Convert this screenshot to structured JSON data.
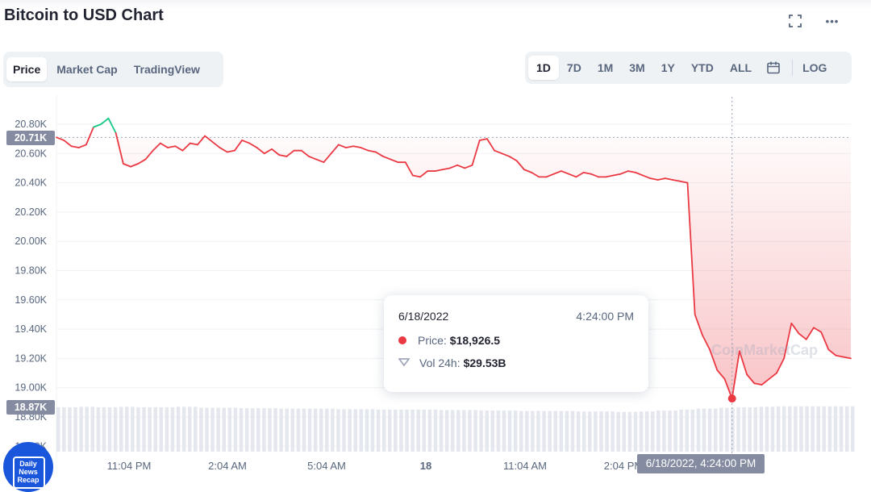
{
  "header": {
    "title": "Bitcoin to USD Chart",
    "fullscreen_icon": "fullscreen-icon",
    "more_icon": "more-icon",
    "more_label": "•••"
  },
  "view_tabs": [
    {
      "label": "Price",
      "active": true
    },
    {
      "label": "Market Cap",
      "active": false
    },
    {
      "label": "TradingView",
      "active": false
    }
  ],
  "range_tabs": [
    {
      "label": "1D",
      "active": true
    },
    {
      "label": "7D",
      "active": false
    },
    {
      "label": "1M",
      "active": false
    },
    {
      "label": "3M",
      "active": false
    },
    {
      "label": "1Y",
      "active": false
    },
    {
      "label": "YTD",
      "active": false
    },
    {
      "label": "ALL",
      "active": false
    }
  ],
  "calendar_icon": "calendar-icon",
  "log_label": "LOG",
  "y_axis": {
    "ticks": [
      "20.80K",
      "20.60K",
      "20.40K",
      "20.20K",
      "20.00K",
      "19.80K",
      "19.60K",
      "19.40K",
      "19.20K",
      "19.00K",
      "18.80K",
      "18.60K"
    ],
    "open_price_label": "20.71K",
    "low_price_label": "18.87K"
  },
  "x_axis": {
    "ticks": [
      "11:04 PM",
      "2:04 AM",
      "5:04 AM",
      "18",
      "11:04 AM",
      "2:04 PM"
    ],
    "hover_label": "6/18/2022, 4:24:00 PM"
  },
  "tooltip": {
    "date": "6/18/2022",
    "time": "4:24:00 PM",
    "price_label": "Price:",
    "price_value": "$18,926.5",
    "vol_label": "Vol 24h:",
    "vol_value": "$29.53B"
  },
  "watermark": "CoinMarketCap",
  "badge": {
    "line1": "Daily",
    "line2": "News",
    "line3": "Recap"
  },
  "colors": {
    "up": "#16c784",
    "down": "#ea3943",
    "axis_text": "#58667e",
    "pill": "#858ca2"
  },
  "chart_data": {
    "type": "line",
    "title": "Bitcoin to USD Chart",
    "ylim": [
      18600,
      20900
    ],
    "open_price": 20710,
    "hover": {
      "time": "6/18/2022, 4:24:00 PM",
      "price": 18926.5
    },
    "x_ticks": [
      "11:04 PM",
      "2:04 AM",
      "5:04 AM",
      "18",
      "11:04 AM",
      "2:04 PM"
    ],
    "price": [
      20710,
      20690,
      20650,
      20640,
      20660,
      20780,
      20800,
      20840,
      20740,
      20530,
      20510,
      20530,
      20560,
      20620,
      20670,
      20640,
      20650,
      20620,
      20670,
      20660,
      20720,
      20680,
      20640,
      20610,
      20620,
      20690,
      20670,
      20640,
      20600,
      20630,
      20590,
      20580,
      20620,
      20620,
      20580,
      20560,
      20540,
      20600,
      20660,
      20640,
      20650,
      20640,
      20620,
      20610,
      20580,
      20560,
      20540,
      20540,
      20450,
      20440,
      20480,
      20480,
      20490,
      20500,
      20520,
      20500,
      20520,
      20690,
      20700,
      20620,
      20600,
      20580,
      20550,
      20490,
      20470,
      20440,
      20440,
      20460,
      20480,
      20460,
      20440,
      20470,
      20460,
      20440,
      20440,
      20450,
      20460,
      20480,
      20470,
      20450,
      20430,
      20420,
      20430,
      20420,
      20410,
      20400,
      19500,
      19360,
      19260,
      19120,
      19060,
      18926,
      19250,
      19090,
      19030,
      19020,
      19060,
      19100,
      19200,
      19440,
      19370,
      19330,
      19410,
      19380,
      19260,
      19220,
      19210,
      19200
    ],
    "volume_level": [
      0.95,
      0.96,
      0.95,
      0.96,
      0.95,
      0.95,
      0.96,
      0.94,
      0.94,
      0.93,
      0.93,
      0.92,
      0.92,
      0.92,
      0.91,
      0.91,
      0.9,
      0.9,
      0.9,
      0.89,
      0.89,
      0.88,
      0.88,
      0.87,
      0.87,
      0.87,
      0.86,
      0.86,
      0.85,
      0.86,
      0.88,
      0.9,
      0.92,
      0.94,
      0.95,
      0.96,
      0.97,
      0.97,
      0.97,
      0.97
    ]
  }
}
